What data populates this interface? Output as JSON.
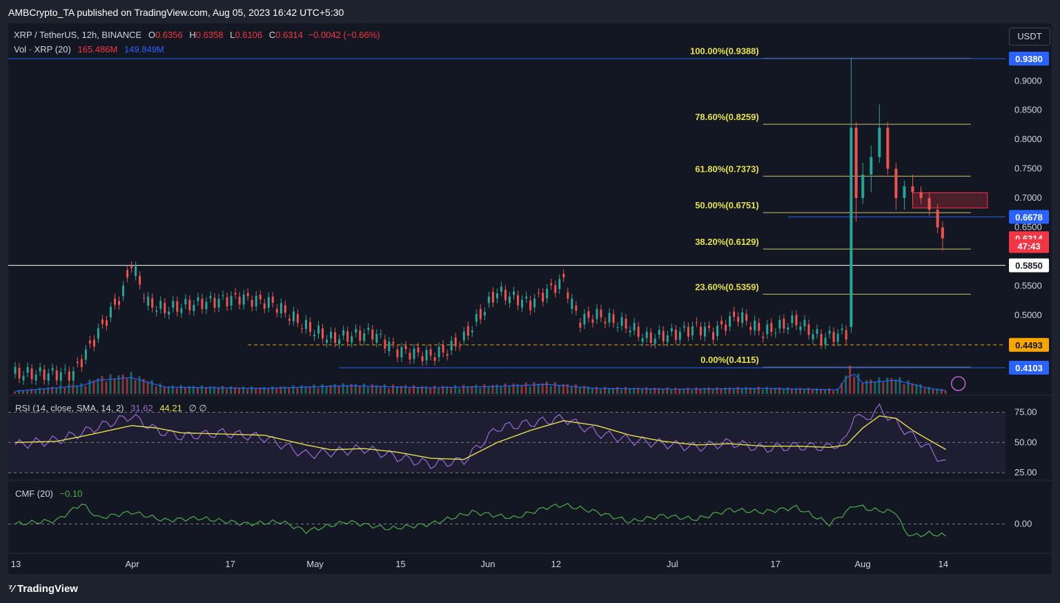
{
  "header": {
    "publisher_line": "AMBCrypto_TA published on TradingView.com, Aug 05, 2023 16:42 UTC+5:30"
  },
  "symbol": {
    "name": "XRP / TetherUS, 12h, BINANCE",
    "open_label": "O",
    "open": "0.6356",
    "high_label": "H",
    "high": "0.6358",
    "low_label": "L",
    "low": "0.6106",
    "close_label": "C",
    "close": "0.6314",
    "change": "−0.0042 (−0.66%)"
  },
  "volume_legend": {
    "label": "Vol · XRP (20)",
    "value1": "165.486M",
    "value2": "149.849M"
  },
  "rsi_legend": {
    "label": "RSI (14, close, SMA, 14, 2)",
    "value1": "31.62",
    "value2": "44.21",
    "extra": "∅ ∅"
  },
  "cmf_legend": {
    "label": "CMF (20)",
    "value": "−0.10"
  },
  "currency_button": "USDT",
  "branding": {
    "logo_text": "TradingView"
  },
  "chart_data": {
    "type": "line",
    "title": "XRP / TetherUS, 12h, BINANCE",
    "ylim": [
      0.38,
      0.96
    ],
    "y_ticks": [
      "0.9000",
      "0.8500",
      "0.8000",
      "0.7500",
      "0.7000",
      "0.6500",
      "0.5500",
      "0.5000"
    ],
    "x_ticks": [
      "13",
      "Apr",
      "17",
      "May",
      "15",
      "Jun",
      "12",
      "Jul",
      "17",
      "Aug",
      "14"
    ],
    "fib_levels": [
      {
        "label": "100.00%(0.9388)",
        "value": 0.9388
      },
      {
        "label": "78.60%(0.8259)",
        "value": 0.8259
      },
      {
        "label": "61.80%(0.7373)",
        "value": 0.7373
      },
      {
        "label": "50.00%(0.6751)",
        "value": 0.6751
      },
      {
        "label": "38.20%(0.6129)",
        "value": 0.6129
      },
      {
        "label": "23.60%(0.5359)",
        "value": 0.5359
      },
      {
        "label": "0.00%(0.4115)",
        "value": 0.4115
      }
    ],
    "price_badges": [
      {
        "label": "0.9380",
        "value": 0.938,
        "color": "#2962ff"
      },
      {
        "label": "0.6678",
        "value": 0.6678,
        "color": "#2962ff"
      },
      {
        "label": "0.6314",
        "value": 0.6314,
        "color": "#f23645"
      },
      {
        "label": "47:43",
        "value": 0.618,
        "color": "#f23645"
      },
      {
        "label": "0.5850",
        "value": 0.585,
        "color": "#ffffff"
      },
      {
        "label": "0.4493",
        "value": 0.4493,
        "color": "#f7a600"
      },
      {
        "label": "0.4103",
        "value": 0.4103,
        "color": "#2962ff"
      }
    ],
    "horizontal_lines": [
      {
        "value": 0.938,
        "color": "#2962ff"
      },
      {
        "value": 0.6678,
        "color": "#2962ff"
      },
      {
        "value": 0.585,
        "color": "#ffffff"
      },
      {
        "value": 0.4493,
        "color": "#f7a600"
      },
      {
        "value": 0.4103,
        "color": "#2962ff"
      }
    ],
    "supply_zone": {
      "low": 0.683,
      "high": 0.709
    },
    "series": [
      {
        "x": [
          0,
          7,
          10,
          13,
          14,
          16,
          18,
          22,
          27,
          31,
          35,
          38,
          43,
          46,
          50,
          52,
          54,
          56,
          58,
          62,
          66,
          67,
          68,
          70,
          72,
          74,
          76,
          80,
          82,
          84,
          87,
          90,
          94,
          97,
          100
        ],
        "values": [
          0.4,
          0.4,
          0.47,
          0.54,
          0.59,
          0.52,
          0.51,
          0.52,
          0.53,
          0.52,
          0.48,
          0.46,
          0.47,
          0.44,
          0.43,
          0.44,
          0.46,
          0.5,
          0.54,
          0.52,
          0.56,
          0.52,
          0.49,
          0.5,
          0.49,
          0.48,
          0.46,
          0.47,
          0.48,
          0.47,
          0.5,
          0.47,
          0.49,
          0.46,
          0.47
        ]
      }
    ],
    "candles_late": [
      {
        "x": 100.6,
        "o": 0.48,
        "h": 0.94,
        "l": 0.47,
        "c": 0.82
      },
      {
        "x": 101.2,
        "o": 0.82,
        "h": 0.83,
        "l": 0.66,
        "c": 0.7
      },
      {
        "x": 102.0,
        "o": 0.7,
        "h": 0.76,
        "l": 0.69,
        "c": 0.74
      },
      {
        "x": 103.0,
        "o": 0.74,
        "h": 0.79,
        "l": 0.71,
        "c": 0.77
      },
      {
        "x": 104.0,
        "o": 0.77,
        "h": 0.86,
        "l": 0.76,
        "c": 0.82
      },
      {
        "x": 105.0,
        "o": 0.82,
        "h": 0.83,
        "l": 0.74,
        "c": 0.75
      },
      {
        "x": 106.0,
        "o": 0.75,
        "h": 0.76,
        "l": 0.68,
        "c": 0.7
      },
      {
        "x": 107.0,
        "o": 0.7,
        "h": 0.73,
        "l": 0.68,
        "c": 0.72
      },
      {
        "x": 108.0,
        "o": 0.72,
        "h": 0.74,
        "l": 0.69,
        "c": 0.71
      },
      {
        "x": 109.0,
        "o": 0.71,
        "h": 0.72,
        "l": 0.69,
        "c": 0.7
      },
      {
        "x": 110.0,
        "o": 0.7,
        "h": 0.71,
        "l": 0.67,
        "c": 0.68
      },
      {
        "x": 111.0,
        "o": 0.68,
        "h": 0.69,
        "l": 0.64,
        "c": 0.65
      },
      {
        "x": 111.6,
        "o": 0.65,
        "h": 0.66,
        "l": 0.61,
        "c": 0.6314
      }
    ],
    "rsi": {
      "levels": [
        75,
        50,
        25
      ],
      "ylim": [
        20,
        85
      ],
      "y_ticks": [
        "75.00",
        "50.00",
        "25.00"
      ],
      "x": [
        0,
        5,
        8,
        10,
        14,
        17,
        20,
        25,
        30,
        35,
        38,
        42,
        46,
        50,
        54,
        58,
        62,
        66,
        70,
        74,
        78,
        82,
        86,
        90,
        94,
        98,
        100,
        101,
        102,
        104,
        106,
        108,
        110,
        112
      ],
      "values": [
        48,
        52,
        58,
        63,
        72,
        60,
        55,
        58,
        54,
        40,
        42,
        45,
        38,
        32,
        35,
        62,
        66,
        70,
        58,
        52,
        49,
        46,
        50,
        45,
        47,
        46,
        52,
        75,
        68,
        78,
        66,
        55,
        45,
        31.62
      ],
      "sma_values": [
        50,
        51,
        55,
        58,
        64,
        62,
        58,
        57,
        56,
        48,
        44,
        45,
        42,
        37,
        36,
        50,
        60,
        68,
        64,
        56,
        51,
        48,
        49,
        47,
        47,
        46,
        48,
        55,
        62,
        72,
        70,
        60,
        52,
        44.21
      ]
    },
    "cmf": {
      "zero": 0,
      "ylim": [
        -0.2,
        0.35
      ],
      "y_ticks": [
        "0.00"
      ],
      "x": [
        0,
        5,
        8,
        10,
        14,
        18,
        22,
        28,
        32,
        35,
        40,
        45,
        50,
        55,
        60,
        64,
        66,
        70,
        74,
        78,
        82,
        86,
        90,
        94,
        98,
        100,
        101,
        103,
        106,
        107,
        108,
        110,
        112
      ],
      "values": [
        0.0,
        0.03,
        0.17,
        0.05,
        0.1,
        0.03,
        0.05,
        0.0,
        0.02,
        -0.06,
        0.02,
        -0.04,
        0.0,
        0.1,
        0.05,
        0.14,
        0.16,
        0.1,
        0.02,
        0.07,
        0.04,
        0.12,
        0.1,
        0.14,
        0.0,
        0.1,
        0.16,
        0.12,
        0.1,
        -0.06,
        -0.1,
        -0.08,
        -0.1
      ]
    },
    "volume": {
      "x": [
        0,
        8,
        10,
        14,
        18,
        30,
        40,
        50,
        58,
        64,
        70,
        80,
        90,
        99,
        100.6,
        102,
        106,
        110,
        112
      ],
      "values": [
        20,
        60,
        100,
        120,
        50,
        40,
        60,
        45,
        55,
        70,
        40,
        35,
        40,
        30,
        170,
        80,
        100,
        40,
        25
      ]
    }
  }
}
